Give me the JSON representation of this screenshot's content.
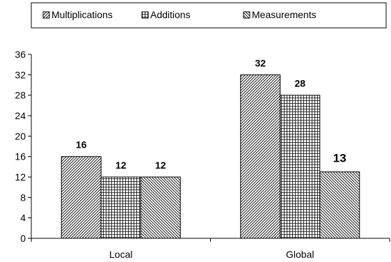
{
  "chart_data": {
    "type": "bar",
    "categories": [
      "Local",
      "Global"
    ],
    "series": [
      {
        "name": "Multiplications",
        "values": [
          16,
          32
        ],
        "pattern": "diagonal-up"
      },
      {
        "name": "Additions",
        "values": [
          12,
          28
        ],
        "pattern": "grid"
      },
      {
        "name": "Measurements",
        "values": [
          12,
          13
        ],
        "pattern": "diagonal-down"
      }
    ],
    "title": "",
    "xlabel": "",
    "ylabel": "",
    "ylim": [
      0,
      36
    ],
    "yticks": [
      0,
      4,
      8,
      12,
      16,
      20,
      24,
      28,
      32,
      36
    ],
    "grid": false,
    "legend": "top",
    "colors": {
      "bar_fill": "#ffffff",
      "stroke": "#000000"
    }
  }
}
